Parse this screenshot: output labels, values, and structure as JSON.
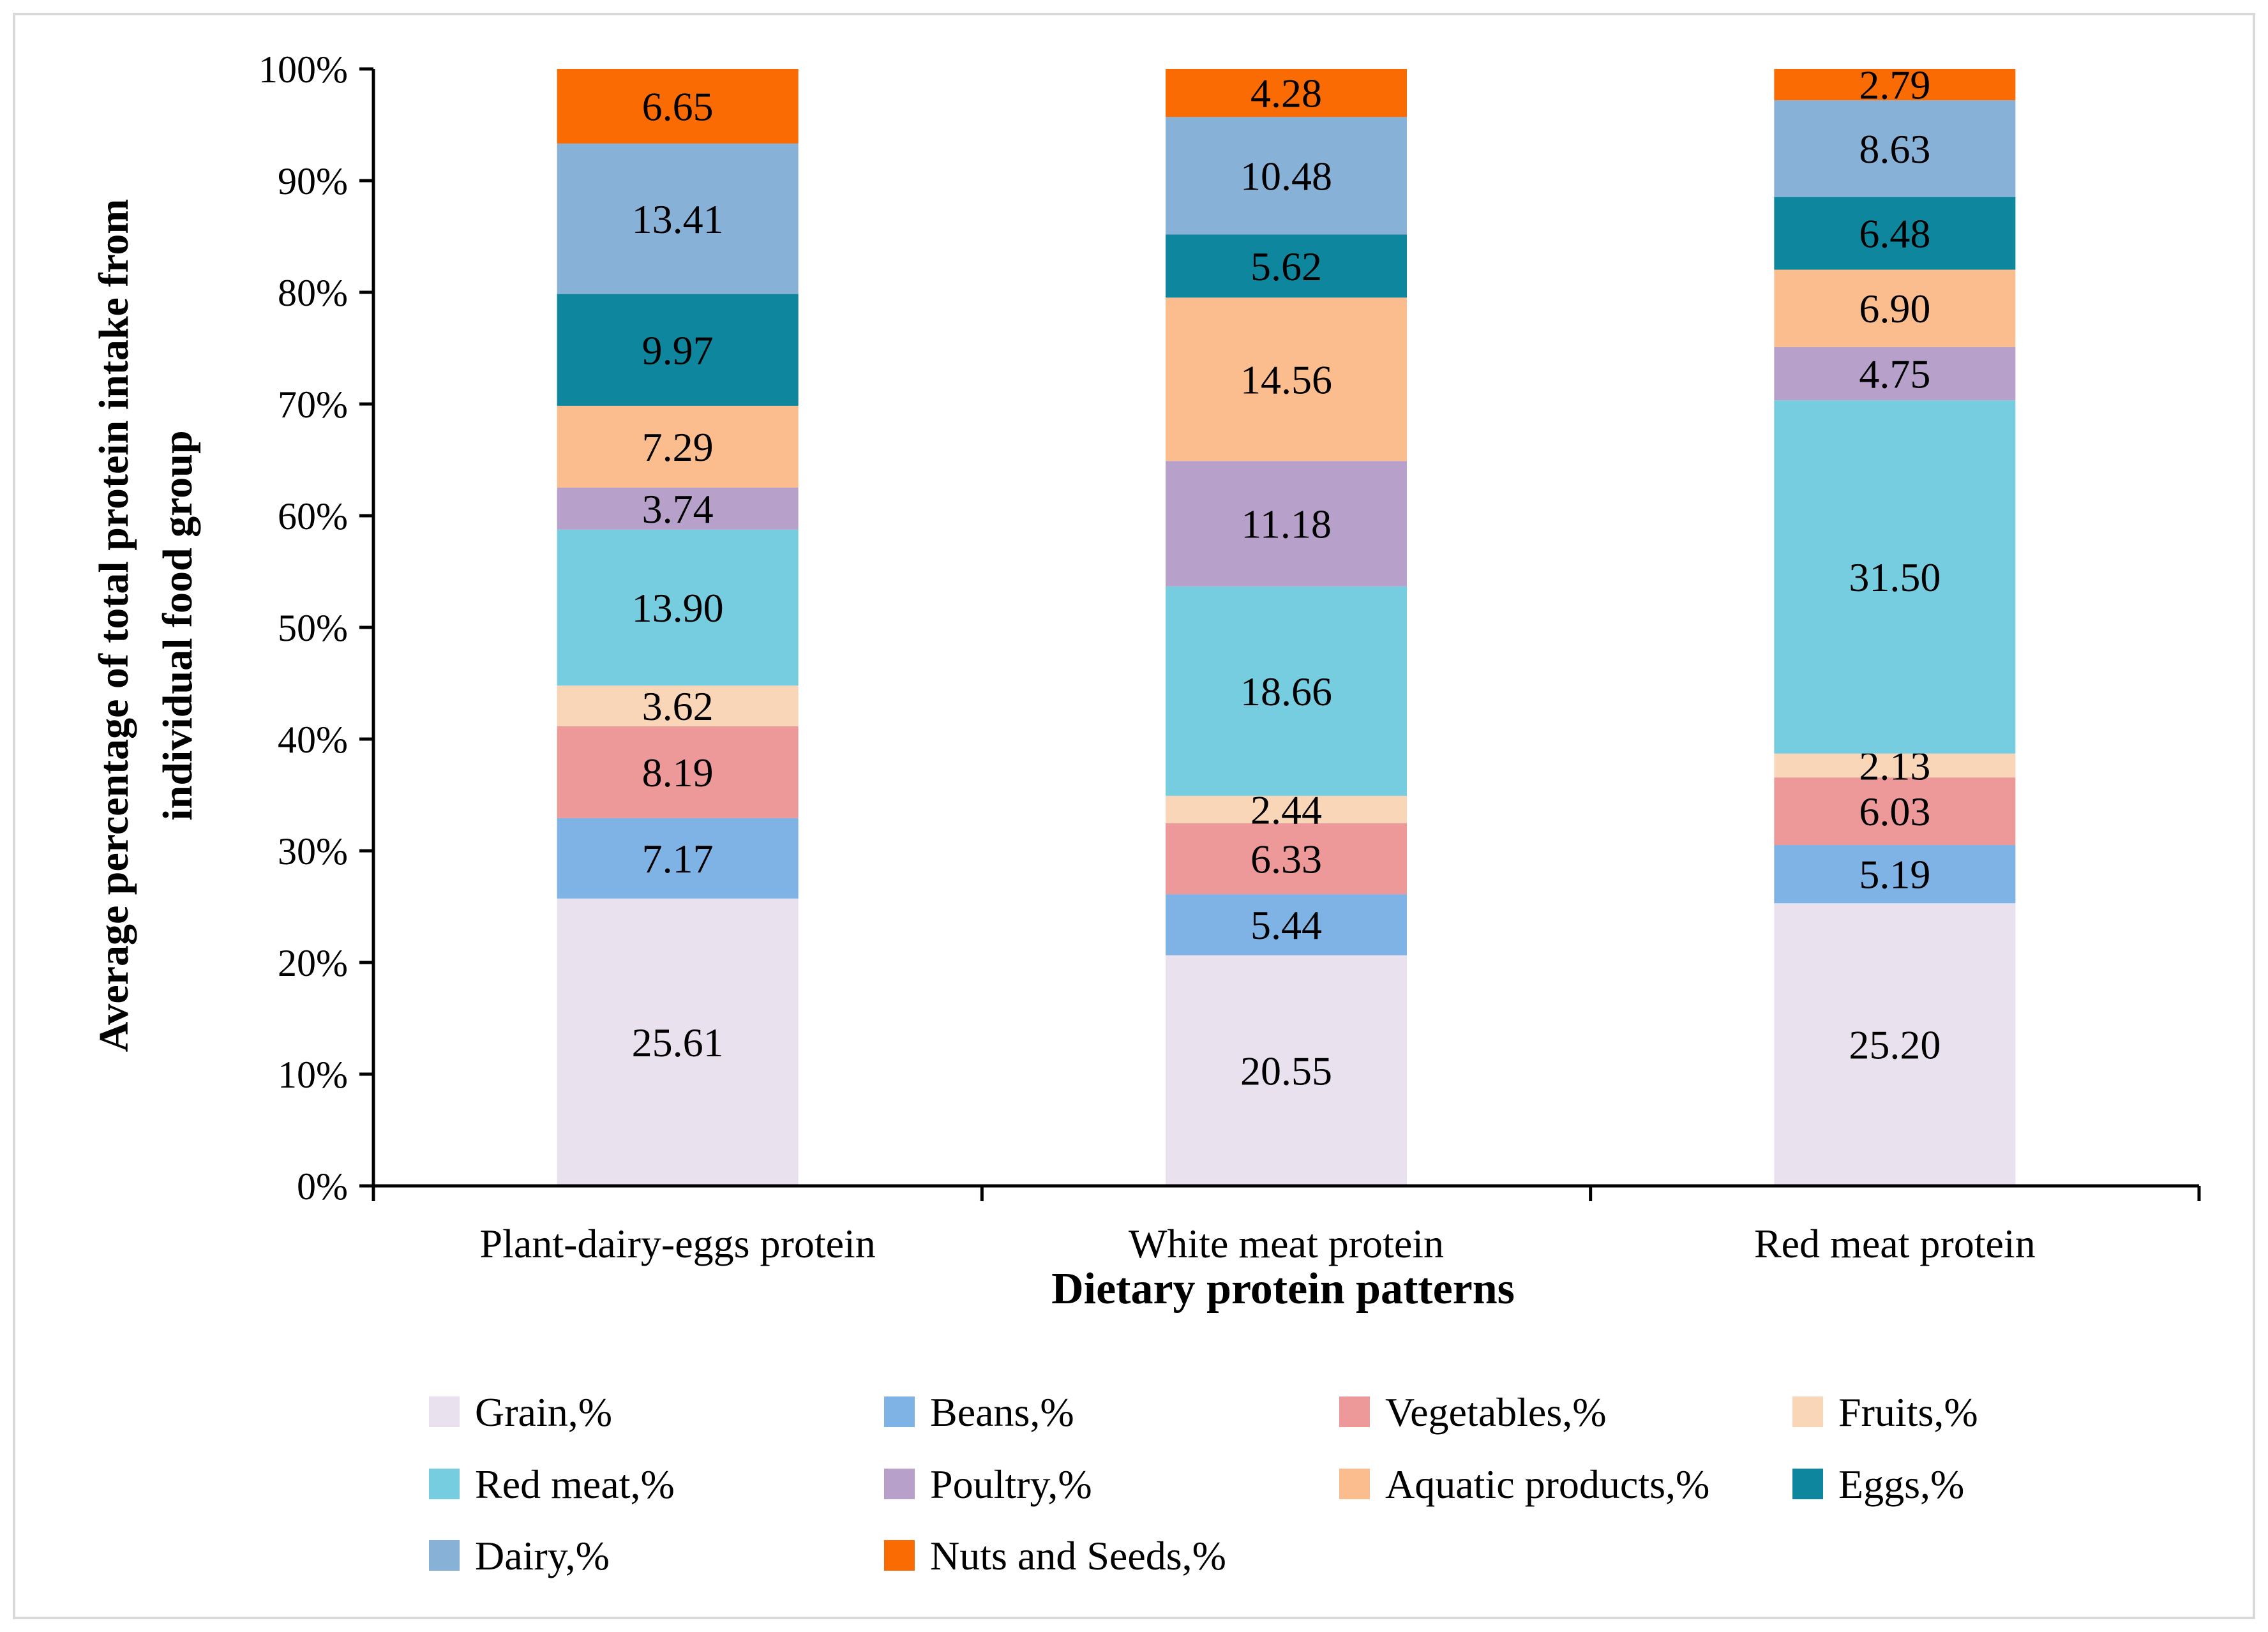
{
  "chart_data": {
    "type": "stacked-bar-100",
    "ylabel": "Average percentage of total protein intake from individual food group",
    "ylabel_lines": [
      "Average percentage of total protein intake from",
      "individual food group"
    ],
    "xlabel": "Dietary protein patterns",
    "ylim": [
      0,
      100
    ],
    "yticks": [
      "0%",
      "10%",
      "20%",
      "30%",
      "40%",
      "50%",
      "60%",
      "70%",
      "80%",
      "90%",
      "100%"
    ],
    "categories": [
      "Plant-dairy-eggs protein",
      "White meat protein",
      "Red meat protein"
    ],
    "series": [
      {
        "name": "Grain,%",
        "color": "#e9e1ee",
        "values": [
          25.61,
          20.55,
          25.2
        ],
        "labels": [
          "25.61",
          "20.55",
          "25.20"
        ]
      },
      {
        "name": "Beans,%",
        "color": "#7fb3e5",
        "values": [
          7.17,
          5.44,
          5.19
        ],
        "labels": [
          "7.17",
          "5.44",
          "5.19"
        ]
      },
      {
        "name": "Vegetables,%",
        "color": "#ee9999",
        "values": [
          8.19,
          6.33,
          6.03
        ],
        "labels": [
          "8.19",
          "6.33",
          "6.03"
        ]
      },
      {
        "name": "Fruits,%",
        "color": "#fad6b8",
        "values": [
          3.62,
          2.44,
          2.13
        ],
        "labels": [
          "3.62",
          "2.44",
          "2.13"
        ]
      },
      {
        "name": "Red meat,%",
        "color": "#76cde0",
        "values": [
          13.9,
          18.66,
          31.5
        ],
        "labels": [
          "13.90",
          "18.66",
          "31.50"
        ]
      },
      {
        "name": "Poultry,%",
        "color": "#b7a1cb",
        "values": [
          3.74,
          11.18,
          4.75
        ],
        "labels": [
          "3.74",
          "11.18",
          "4.75"
        ]
      },
      {
        "name": "Aquatic products,%",
        "color": "#fbbd8e",
        "values": [
          7.29,
          14.56,
          6.9
        ],
        "labels": [
          "7.29",
          "14.56",
          "6.90"
        ]
      },
      {
        "name": "Eggs,%",
        "color": "#0e869e",
        "values": [
          9.97,
          5.62,
          6.48
        ],
        "labels": [
          "9.97",
          "5.62",
          "6.48"
        ]
      },
      {
        "name": "Dairy,%",
        "color": "#88b1d8",
        "values": [
          13.41,
          10.48,
          8.63
        ],
        "labels": [
          "13.41",
          "10.48",
          "8.63"
        ]
      },
      {
        "name": "Nuts and Seeds,%",
        "color": "#fb6b04",
        "values": [
          6.65,
          4.28,
          2.79
        ],
        "labels": [
          "6.65",
          "4.28",
          "2.79"
        ]
      }
    ]
  }
}
